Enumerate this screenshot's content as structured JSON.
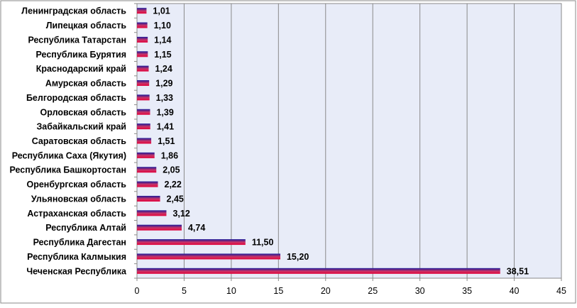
{
  "chart_data": {
    "type": "bar",
    "orientation": "horizontal",
    "categories": [
      "Ленинградская область",
      "Липецкая область",
      "Республика Татарстан",
      "Республика Бурятия",
      "Краснодарский край",
      "Амурская область",
      "Белгородская область",
      "Орловская область",
      "Забайкальский край",
      "Саратовская область",
      "Республика Саха (Якутия)",
      "Республика Башкортостан",
      "Оренбургская область",
      "Ульяновская область",
      "Астраханская область",
      "Республика Алтай",
      "Республика Дагестан",
      "Республика Калмыкия",
      "Чеченская Республика"
    ],
    "values": [
      1.01,
      1.1,
      1.14,
      1.15,
      1.24,
      1.29,
      1.33,
      1.39,
      1.41,
      1.51,
      1.86,
      2.05,
      2.22,
      2.45,
      3.12,
      4.74,
      11.5,
      15.2,
      38.51
    ],
    "value_labels": [
      "1,01",
      "1,10",
      "1,14",
      "1,15",
      "1,24",
      "1,29",
      "1,33",
      "1,39",
      "1,41",
      "1,51",
      "1,86",
      "2,05",
      "2,22",
      "2,45",
      "3,12",
      "4,74",
      "11,50",
      "15,20",
      "38,51"
    ],
    "x_ticks": [
      "0",
      "5",
      "10",
      "15",
      "20",
      "25",
      "30",
      "35",
      "40",
      "45"
    ],
    "xlim": [
      0,
      45
    ],
    "title": "",
    "xlabel": "",
    "ylabel": "",
    "grid": "vertical",
    "legend": "none",
    "colors": {
      "bar_top": "#1a1a9a",
      "bar_mid": "#cc3366",
      "bar_bottom": "#e0003a",
      "plot_bg": "#e8ecf8",
      "grid": "#8a8a8a",
      "border": "#8a8a8a"
    }
  }
}
